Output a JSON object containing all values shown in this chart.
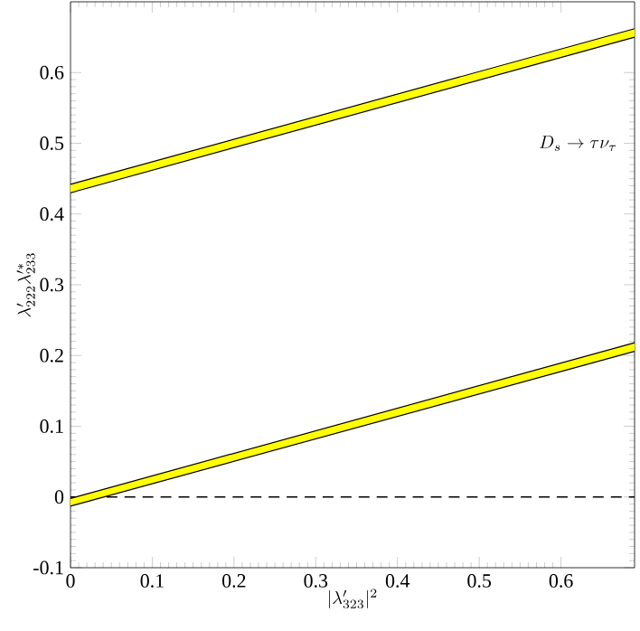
{
  "chart_data": {
    "type": "line",
    "xlabel": "|\\lambda'_{323}|^2",
    "ylabel": "\\lambda'_{222}\\lambda'^{*}_{233}",
    "annotations": [
      "D_s \\to \\tau\\nu_\\tau"
    ],
    "x": [
      0,
      0.69
    ],
    "series": [
      {
        "color": "#000000",
        "values": [
          -0.013,
          0.206
        ],
        "lower": [
          -0.013,
          0.206
        ],
        "upper": [
          -0.002,
          0.218
        ]
      },
      {
        "color": "#000000",
        "values": [
          -0.002,
          0.218
        ]
      },
      {
        "color": "#000000",
        "values": [
          0.43,
          0.65
        ],
        "lower": [
          0.43,
          0.65
        ],
        "upper": [
          0.442,
          0.662
        ]
      },
      {
        "color": "#000000",
        "values": [
          0.442,
          0.662
        ]
      }
    ],
    "xlim": [
      0,
      0.69
    ],
    "ylim": [
      -0.1,
      0.7
    ],
    "xticks": [
      0,
      0.1,
      0.2,
      0.3,
      0.4,
      0.5,
      0.6
    ],
    "yticks": [
      -0.1,
      0,
      0.1,
      0.2,
      0.3,
      0.4,
      0.5,
      0.6
    ],
    "ref_lines": [
      {
        "axis": "y",
        "value": 0,
        "line_style": "dashed"
      }
    ],
    "grid": false
  }
}
